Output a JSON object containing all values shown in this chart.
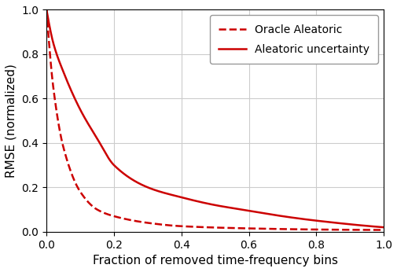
{
  "title": "",
  "xlabel": "Fraction of removed time-frequency bins",
  "ylabel": "RMSE (normalized)",
  "xlim": [
    0,
    1
  ],
  "ylim": [
    0,
    1
  ],
  "xticks": [
    0,
    0.2,
    0.4,
    0.6,
    0.8,
    1.0
  ],
  "yticks": [
    0,
    0.2,
    0.4,
    0.6,
    0.8,
    1.0
  ],
  "line_color": "#cc0000",
  "legend": [
    {
      "label": "Oracle Aleatoric",
      "linestyle": "dashed"
    },
    {
      "label": "Aleatoric uncertainty",
      "linestyle": "solid"
    }
  ],
  "background_color": "#ffffff",
  "grid_color": "#cccccc",
  "figsize": [
    5.06,
    3.46
  ],
  "dpi": 100,
  "oracle_a": 22.0,
  "oracle_b": 0.42,
  "aleatoric_a": 4.5,
  "aleatoric_b": 0.62
}
